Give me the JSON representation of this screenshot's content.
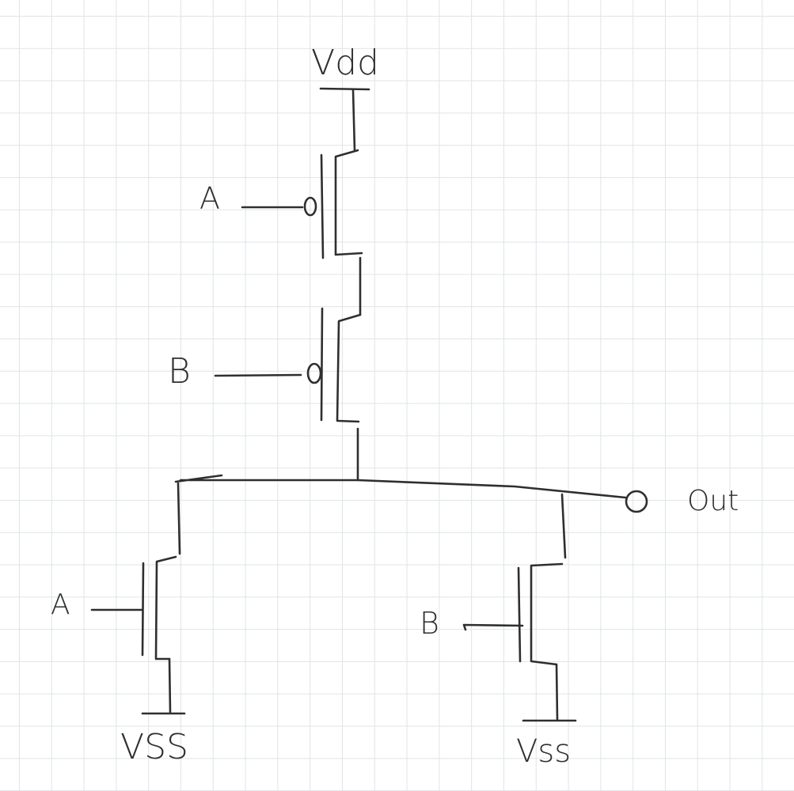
{
  "labels": {
    "vdd": "Vdd",
    "pmos_a_input": "A",
    "pmos_b_input": "B",
    "nmos_a_input": "A",
    "nmos_b_input": "B",
    "output": "Out",
    "vss_left": "VSS",
    "vss_right": "Vss"
  },
  "colors": {
    "ink": "#2f2f2f",
    "grid": "#dfe4e7",
    "paper": "#ffffff"
  }
}
